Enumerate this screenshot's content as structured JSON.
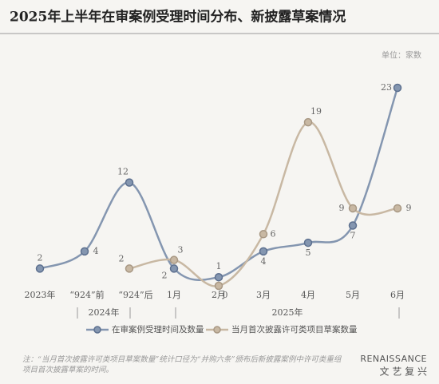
{
  "chart_data": {
    "type": "line",
    "title": "2025年上半年在审案例受理时间分布、新披露草案情况",
    "unit": "单位：家数",
    "categories": [
      "2023年",
      "“924”前",
      "“924”后",
      "1月",
      "2月",
      "3月",
      "4月",
      "5月",
      "6月"
    ],
    "groups": [
      "2024年",
      "2025年"
    ],
    "series": [
      {
        "name": "在审案例受理时间及数量",
        "color": "#8496b0",
        "values": [
          2,
          4,
          12,
          2,
          1,
          4,
          5,
          7,
          23
        ]
      },
      {
        "name": "当月首次披露许可类项目草案数量",
        "color": "#c8b8a3",
        "values": [
          null,
          null,
          2,
          3,
          0,
          6,
          19,
          9,
          9
        ]
      }
    ],
    "smooth": true,
    "note": "注：“当月首次披露许可类项目草案数量”统计口径为“并购六条”颁布后新披露案例中许可类重组项目首次披露草案的时间。",
    "logo": {
      "en": "RENAISSANCE",
      "cn": "文 艺 复 兴"
    }
  }
}
